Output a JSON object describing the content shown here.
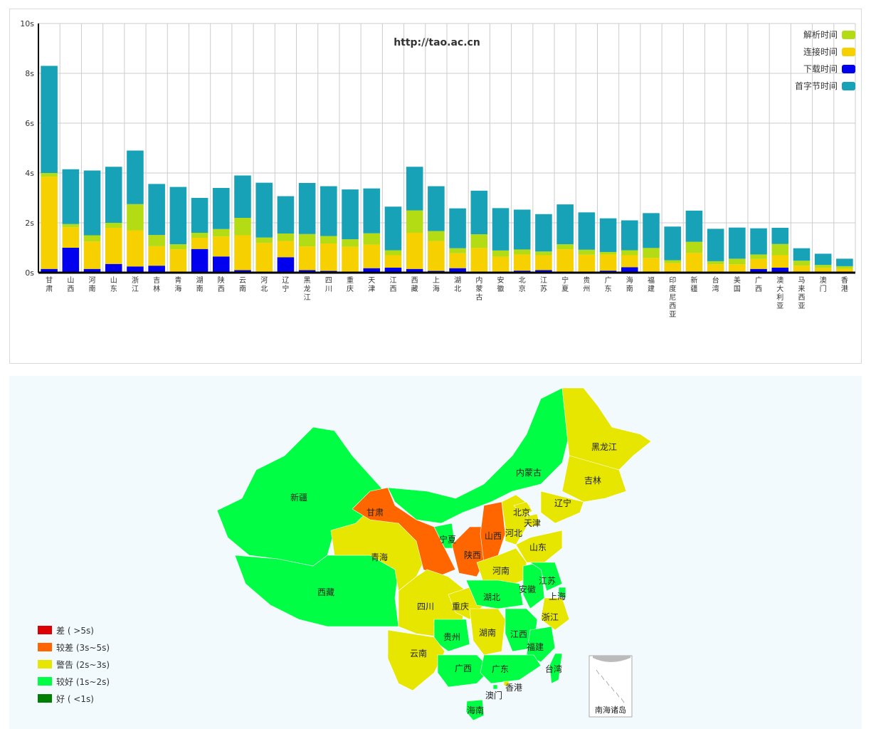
{
  "chart_data": {
    "type": "bar",
    "stacked": true,
    "title": "http://tao.ac.cn",
    "xlabel": "",
    "ylabel": "",
    "ylim": [
      0,
      10
    ],
    "yticks": [
      "0s",
      "2s",
      "4s",
      "6s",
      "8s",
      "10s"
    ],
    "grid": true,
    "legend_position": "top-right",
    "categories": [
      "甘肃",
      "山西",
      "河南",
      "山东",
      "浙江",
      "吉林",
      "青海",
      "湖南",
      "陕西",
      "云南",
      "河北",
      "辽宁",
      "黑龙江",
      "四川",
      "重庆",
      "天津",
      "江西",
      "西藏",
      "上海",
      "湖北",
      "内蒙古",
      "安徽",
      "北京",
      "江苏",
      "宁夏",
      "贵州",
      "广东",
      "海南",
      "福建",
      "印度尼西亚",
      "新疆",
      "台湾",
      "美国",
      "广西",
      "澳大利亚",
      "马来西亚",
      "澳门",
      "香港"
    ],
    "series": [
      {
        "name": "下载时间",
        "color": "#0000ee",
        "values": [
          0.15,
          1.0,
          0.15,
          0.35,
          0.25,
          0.28,
          0.04,
          0.95,
          0.65,
          0.1,
          0.04,
          0.62,
          0.1,
          0.07,
          0.04,
          0.18,
          0.2,
          0.15,
          0.07,
          0.18,
          0.04,
          0.04,
          0.08,
          0.1,
          0.04,
          0.04,
          0.08,
          0.22,
          0.04,
          0.04,
          0.04,
          0.04,
          0.04,
          0.15,
          0.2,
          0.04,
          0.04,
          0.04
        ]
      },
      {
        "name": "连接时间",
        "color": "#f7d000",
        "values": [
          3.7,
          0.82,
          1.1,
          1.45,
          1.45,
          0.78,
          0.9,
          0.45,
          0.8,
          1.4,
          1.15,
          0.65,
          0.95,
          1.1,
          1.0,
          0.95,
          0.5,
          1.45,
          1.2,
          0.6,
          0.95,
          0.6,
          0.65,
          0.6,
          0.9,
          0.68,
          0.65,
          0.48,
          0.55,
          0.34,
          0.75,
          0.3,
          0.3,
          0.4,
          0.5,
          0.24,
          0.15,
          0.12
        ]
      },
      {
        "name": "解析时间",
        "color": "#b4dc14",
        "values": [
          0.15,
          0.13,
          0.25,
          0.2,
          1.05,
          0.45,
          0.2,
          0.2,
          0.3,
          0.7,
          0.22,
          0.3,
          0.5,
          0.3,
          0.3,
          0.45,
          0.2,
          0.9,
          0.4,
          0.2,
          0.55,
          0.25,
          0.2,
          0.15,
          0.2,
          0.2,
          0.1,
          0.2,
          0.4,
          0.12,
          0.45,
          0.12,
          0.22,
          0.18,
          0.45,
          0.2,
          0.12,
          0.1
        ]
      },
      {
        "name": "首字节时间",
        "color": "#18a2b8",
        "values": [
          4.3,
          2.2,
          2.6,
          2.25,
          2.15,
          2.05,
          2.3,
          1.4,
          1.65,
          1.7,
          2.2,
          1.5,
          2.05,
          2.0,
          2.0,
          1.8,
          1.75,
          1.75,
          1.8,
          1.6,
          1.75,
          1.7,
          1.6,
          1.5,
          1.6,
          1.5,
          1.35,
          1.2,
          1.4,
          1.35,
          1.25,
          1.3,
          1.25,
          1.05,
          0.65,
          0.5,
          0.45,
          0.3
        ]
      }
    ],
    "legend_order": [
      "解析时间",
      "连接时间",
      "下载时间",
      "首字节时间"
    ]
  },
  "map": {
    "title": "南海诸岛",
    "legend": [
      {
        "label": "差 ( >5s)",
        "color": "#dd0000"
      },
      {
        "label": "较差 (3s~5s)",
        "color": "#ff6600"
      },
      {
        "label": "警告 (2s~3s)",
        "color": "#e6e600"
      },
      {
        "label": "较好 (1s~2s)",
        "color": "#00ff44"
      },
      {
        "label": "好 ( <1s)",
        "color": "#008000"
      }
    ],
    "provinces": [
      {
        "name": "黑龙江",
        "level": "警告"
      },
      {
        "name": "吉林",
        "level": "警告"
      },
      {
        "name": "辽宁",
        "level": "警告"
      },
      {
        "name": "内蒙古",
        "level": "较好"
      },
      {
        "name": "北京",
        "level": "警告"
      },
      {
        "name": "天津",
        "level": "警告"
      },
      {
        "name": "河北",
        "level": "警告"
      },
      {
        "name": "山西",
        "level": "较差"
      },
      {
        "name": "山东",
        "level": "警告"
      },
      {
        "name": "宁夏",
        "level": "较好"
      },
      {
        "name": "甘肃",
        "level": "较差"
      },
      {
        "name": "新疆",
        "level": "较好"
      },
      {
        "name": "青海",
        "level": "警告"
      },
      {
        "name": "陕西",
        "level": "较差"
      },
      {
        "name": "河南",
        "level": "警告"
      },
      {
        "name": "江苏",
        "level": "较好"
      },
      {
        "name": "安徽",
        "level": "较好"
      },
      {
        "name": "上海",
        "level": "较好"
      },
      {
        "name": "西藏",
        "level": "较好"
      },
      {
        "name": "四川",
        "level": "警告"
      },
      {
        "name": "重庆",
        "level": "警告"
      },
      {
        "name": "湖北",
        "level": "较好"
      },
      {
        "name": "浙江",
        "level": "警告"
      },
      {
        "name": "湖南",
        "level": "警告"
      },
      {
        "name": "江西",
        "level": "较好"
      },
      {
        "name": "贵州",
        "level": "较好"
      },
      {
        "name": "云南",
        "level": "警告"
      },
      {
        "name": "福建",
        "level": "较好"
      },
      {
        "name": "广西",
        "level": "较好"
      },
      {
        "name": "广东",
        "level": "较好"
      },
      {
        "name": "台湾",
        "level": "较好"
      },
      {
        "name": "香港",
        "level": "警告"
      },
      {
        "name": "澳门",
        "level": "较好"
      },
      {
        "name": "海南",
        "level": "较好"
      }
    ]
  }
}
